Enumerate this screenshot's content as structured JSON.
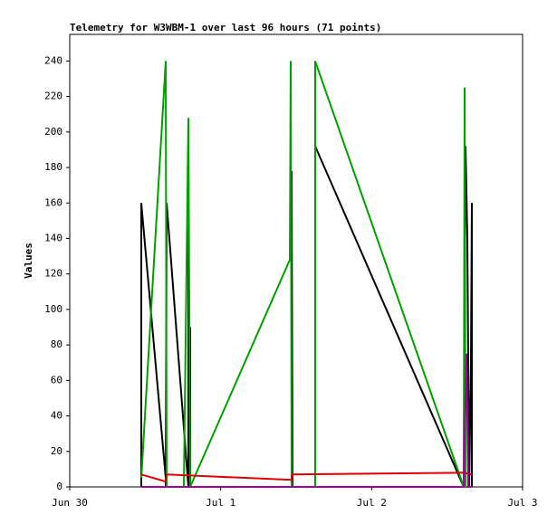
{
  "chart_data": {
    "type": "line",
    "title": "Telemetry for W3WBM-1 over last 96 hours (71 points)",
    "y_label": "Values",
    "xlim": [
      0,
      3
    ],
    "xticks": [
      {
        "value": 0,
        "label": "Jun 30"
      },
      {
        "value": 1,
        "label": "Jul 1"
      },
      {
        "value": 2,
        "label": "Jul 2"
      },
      {
        "value": 3,
        "label": "Jul 3"
      }
    ],
    "ylim": [
      0,
      255
    ],
    "yticks": [
      0,
      20,
      40,
      60,
      80,
      100,
      120,
      140,
      160,
      180,
      200,
      220,
      240
    ],
    "series": [
      {
        "color": "#000000",
        "x": [
          0.474,
          0.474,
          0.636,
          0.636,
          0.642,
          0.786,
          0.786,
          0.792,
          0.798,
          0.798,
          1.47,
          1.47,
          1.476,
          1.626,
          1.626,
          2.61,
          2.622,
          2.634,
          2.646,
          2.658,
          2.664,
          2.664
        ],
        "values": [
          0,
          160,
          5,
          0,
          160,
          0,
          178,
          0,
          90,
          0,
          0,
          178,
          0,
          0,
          192,
          0,
          192,
          140,
          0,
          70,
          160,
          0
        ]
      },
      {
        "color": "#00a000",
        "x": [
          0.474,
          0.636,
          0.642,
          0.756,
          0.786,
          0.798,
          1.458,
          1.464,
          1.47,
          1.626,
          1.626,
          2.61,
          2.616,
          2.622,
          2.652
        ],
        "values": [
          5,
          240,
          0,
          0,
          208,
          0,
          128,
          240,
          0,
          0,
          240,
          0,
          225,
          0,
          0
        ]
      },
      {
        "color": "#e00000",
        "x": [
          0.474,
          0.636,
          0.642,
          1.47,
          1.476,
          2.61,
          2.664
        ],
        "values": [
          7,
          3,
          7,
          4,
          7,
          8,
          7
        ]
      },
      {
        "color": "#a000a0",
        "x": [
          0.474,
          2.61,
          2.628,
          2.64,
          2.664
        ],
        "values": [
          0,
          0,
          75,
          0,
          0
        ]
      }
    ]
  }
}
